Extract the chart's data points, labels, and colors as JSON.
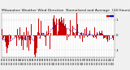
{
  "title": "Milwaukee Weather Wind Direction  Normalized and Average  (24 Hours) (Old)",
  "title_fontsize": 3.2,
  "background_color": "#f0f0f0",
  "plot_bg_color": "#ffffff",
  "grid_color": "#aaaaaa",
  "bar_color": "#cc0000",
  "line_color": "#0000cc",
  "ylim": [
    -1.5,
    1.5
  ],
  "ytick_vals": [
    -1.0,
    0.0,
    1.0
  ],
  "ytick_labels": [
    "-1",
    "0",
    "1"
  ],
  "n_bars": 144,
  "seed": 7
}
